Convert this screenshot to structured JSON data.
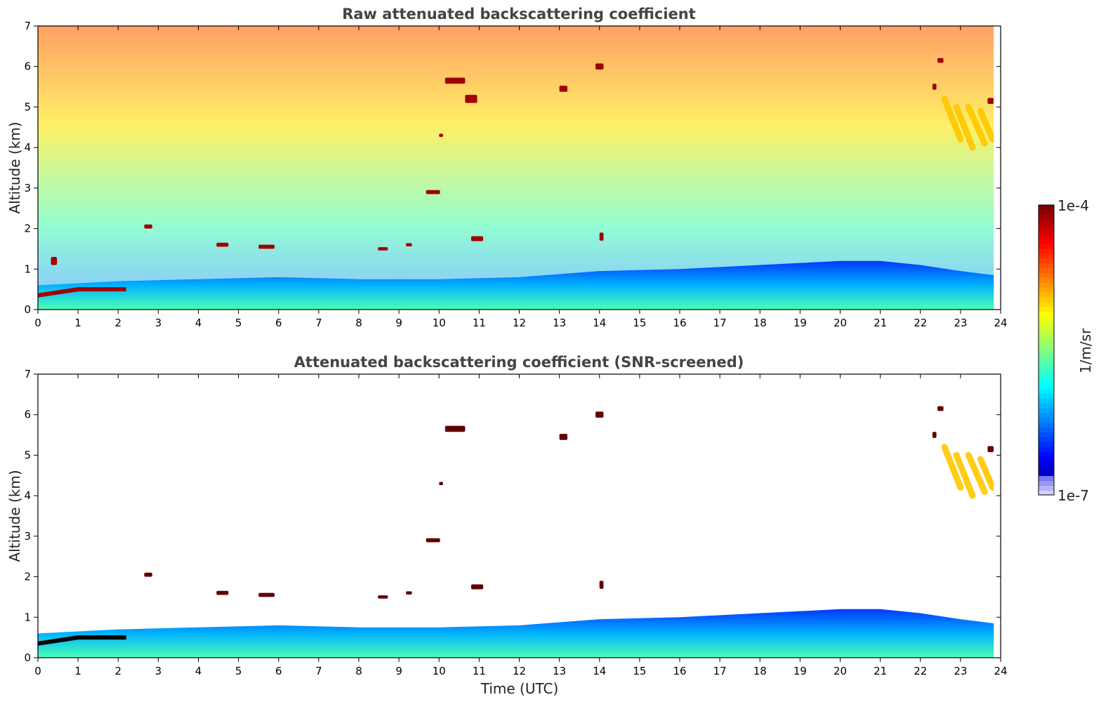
{
  "colorbar": {
    "max_label": "1e-4",
    "min_label": "1e-7",
    "unit": "1/m/sr",
    "colormap": "jet",
    "min_value": 1e-07,
    "max_value": 0.0001
  },
  "chart_data": [
    {
      "type": "heatmap",
      "title": "Raw attenuated backscattering coefficient",
      "xlabel": "",
      "ylabel": "Altitude (km)",
      "xlim": [
        0,
        24
      ],
      "ylim": [
        0,
        7
      ],
      "xticks": [
        "0",
        "1",
        "2",
        "3",
        "4",
        "5",
        "6",
        "7",
        "8",
        "9",
        "10",
        "11",
        "12",
        "13",
        "14",
        "15",
        "16",
        "17",
        "18",
        "19",
        "20",
        "21",
        "22",
        "23",
        "24"
      ],
      "yticks": [
        "0",
        "1",
        "2",
        "3",
        "4",
        "5",
        "6",
        "7"
      ],
      "data_end_hour": 23.83,
      "boundary_layer_top_km": [
        {
          "x": 0,
          "y": 0.6
        },
        {
          "x": 2,
          "y": 0.7
        },
        {
          "x": 4,
          "y": 0.75
        },
        {
          "x": 6,
          "y": 0.8
        },
        {
          "x": 8,
          "y": 0.75
        },
        {
          "x": 10,
          "y": 0.75
        },
        {
          "x": 12,
          "y": 0.8
        },
        {
          "x": 14,
          "y": 0.95
        },
        {
          "x": 16,
          "y": 1.0
        },
        {
          "x": 18,
          "y": 1.1
        },
        {
          "x": 20,
          "y": 1.2
        },
        {
          "x": 21,
          "y": 1.2
        },
        {
          "x": 22,
          "y": 1.1
        },
        {
          "x": 23,
          "y": 0.95
        },
        {
          "x": 23.83,
          "y": 0.85
        }
      ],
      "cloud_patches": [
        {
          "x": 0.4,
          "y": 1.2,
          "w": 0.15,
          "h": 0.2
        },
        {
          "x": 2.75,
          "y": 2.05,
          "w": 0.2,
          "h": 0.1
        },
        {
          "x": 4.6,
          "y": 1.6,
          "w": 0.3,
          "h": 0.1
        },
        {
          "x": 5.7,
          "y": 1.55,
          "w": 0.4,
          "h": 0.1
        },
        {
          "x": 8.6,
          "y": 1.5,
          "w": 0.25,
          "h": 0.08
        },
        {
          "x": 9.25,
          "y": 1.6,
          "w": 0.15,
          "h": 0.08
        },
        {
          "x": 9.85,
          "y": 2.9,
          "w": 0.35,
          "h": 0.1
        },
        {
          "x": 10.05,
          "y": 4.3,
          "w": 0.1,
          "h": 0.08
        },
        {
          "x": 10.4,
          "y": 5.65,
          "w": 0.5,
          "h": 0.15
        },
        {
          "x": 10.8,
          "y": 5.2,
          "w": 0.3,
          "h": 0.2
        },
        {
          "x": 10.95,
          "y": 1.75,
          "w": 0.3,
          "h": 0.12
        },
        {
          "x": 13.1,
          "y": 5.45,
          "w": 0.2,
          "h": 0.15
        },
        {
          "x": 14.0,
          "y": 6.0,
          "w": 0.2,
          "h": 0.15
        },
        {
          "x": 14.05,
          "y": 1.8,
          "w": 0.1,
          "h": 0.2
        },
        {
          "x": 22.35,
          "y": 5.5,
          "w": 0.1,
          "h": 0.15
        },
        {
          "x": 22.5,
          "y": 6.15,
          "w": 0.15,
          "h": 0.12
        },
        {
          "x": 23.75,
          "y": 5.15,
          "w": 0.15,
          "h": 0.15
        }
      ],
      "cirrus_bands": [
        {
          "x1": 22.6,
          "y1": 5.2,
          "x2": 23.0,
          "y2": 4.2
        },
        {
          "x1": 22.9,
          "y1": 5.0,
          "x2": 23.3,
          "y2": 4.0
        },
        {
          "x1": 23.2,
          "y1": 5.0,
          "x2": 23.6,
          "y2": 4.1
        },
        {
          "x1": 23.5,
          "y1": 4.9,
          "x2": 23.8,
          "y2": 4.2
        }
      ]
    },
    {
      "type": "heatmap",
      "title": "Attenuated backscattering coefficient (SNR-screened)",
      "xlabel": "Time (UTC)",
      "ylabel": "Altitude (km)",
      "xlim": [
        0,
        24
      ],
      "ylim": [
        0,
        7
      ],
      "xticks": [
        "0",
        "1",
        "2",
        "3",
        "4",
        "5",
        "6",
        "7",
        "8",
        "9",
        "10",
        "11",
        "12",
        "13",
        "14",
        "15",
        "16",
        "17",
        "18",
        "19",
        "20",
        "21",
        "22",
        "23",
        "24"
      ],
      "yticks": [
        "0",
        "1",
        "2",
        "3",
        "4",
        "5",
        "6",
        "7"
      ],
      "data_end_hour": 23.83,
      "boundary_layer_top_km": [
        {
          "x": 0,
          "y": 0.6
        },
        {
          "x": 2,
          "y": 0.7
        },
        {
          "x": 4,
          "y": 0.75
        },
        {
          "x": 6,
          "y": 0.8
        },
        {
          "x": 8,
          "y": 0.75
        },
        {
          "x": 10,
          "y": 0.75
        },
        {
          "x": 12,
          "y": 0.8
        },
        {
          "x": 14,
          "y": 0.95
        },
        {
          "x": 16,
          "y": 1.0
        },
        {
          "x": 18,
          "y": 1.1
        },
        {
          "x": 20,
          "y": 1.2
        },
        {
          "x": 21,
          "y": 1.2
        },
        {
          "x": 22,
          "y": 1.1
        },
        {
          "x": 23,
          "y": 0.95
        },
        {
          "x": 23.83,
          "y": 0.85
        }
      ],
      "cloud_patches": [
        {
          "x": 2.75,
          "y": 2.05,
          "w": 0.2,
          "h": 0.1
        },
        {
          "x": 4.6,
          "y": 1.6,
          "w": 0.3,
          "h": 0.1
        },
        {
          "x": 5.7,
          "y": 1.55,
          "w": 0.4,
          "h": 0.1
        },
        {
          "x": 8.6,
          "y": 1.5,
          "w": 0.25,
          "h": 0.08
        },
        {
          "x": 9.25,
          "y": 1.6,
          "w": 0.15,
          "h": 0.08
        },
        {
          "x": 9.85,
          "y": 2.9,
          "w": 0.35,
          "h": 0.1
        },
        {
          "x": 10.05,
          "y": 4.3,
          "w": 0.1,
          "h": 0.08
        },
        {
          "x": 10.4,
          "y": 5.65,
          "w": 0.5,
          "h": 0.15
        },
        {
          "x": 10.95,
          "y": 1.75,
          "w": 0.3,
          "h": 0.12
        },
        {
          "x": 13.1,
          "y": 5.45,
          "w": 0.2,
          "h": 0.15
        },
        {
          "x": 14.0,
          "y": 6.0,
          "w": 0.2,
          "h": 0.15
        },
        {
          "x": 14.05,
          "y": 1.8,
          "w": 0.1,
          "h": 0.2
        },
        {
          "x": 22.35,
          "y": 5.5,
          "w": 0.1,
          "h": 0.15
        },
        {
          "x": 22.5,
          "y": 6.15,
          "w": 0.15,
          "h": 0.12
        },
        {
          "x": 23.75,
          "y": 5.15,
          "w": 0.15,
          "h": 0.15
        }
      ],
      "cirrus_bands": [
        {
          "x1": 22.6,
          "y1": 5.2,
          "x2": 23.0,
          "y2": 4.2
        },
        {
          "x1": 22.9,
          "y1": 5.0,
          "x2": 23.3,
          "y2": 4.0
        },
        {
          "x1": 23.2,
          "y1": 5.0,
          "x2": 23.6,
          "y2": 4.1
        },
        {
          "x1": 23.5,
          "y1": 4.9,
          "x2": 23.8,
          "y2": 4.2
        }
      ]
    }
  ]
}
